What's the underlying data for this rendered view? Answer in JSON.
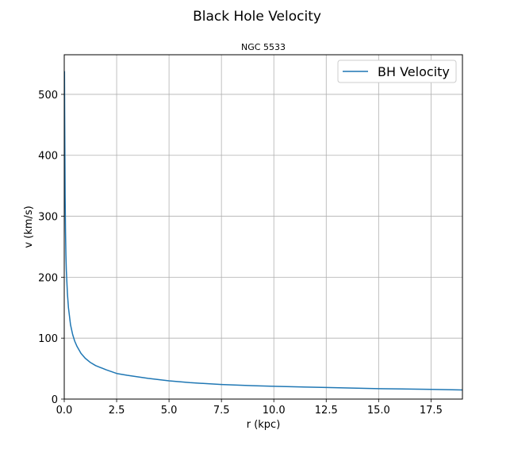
{
  "figure": {
    "suptitle": "Black Hole Velocity"
  },
  "chart_data": {
    "type": "line",
    "title": "NGC 5533",
    "xlabel": "r (kpc)",
    "ylabel": "v (km/s)",
    "xlim": [
      0,
      19
    ],
    "ylim": [
      0,
      565
    ],
    "xticks": [
      0,
      2.5,
      5,
      7.5,
      10,
      12.5,
      15,
      17.5
    ],
    "xtick_labels": [
      "0.0",
      "2.5",
      "5.0",
      "7.5",
      "10.0",
      "12.5",
      "15.0",
      "17.5"
    ],
    "yticks": [
      0,
      100,
      200,
      300,
      400,
      500
    ],
    "ytick_labels": [
      "0",
      "100",
      "200",
      "300",
      "400",
      "500"
    ],
    "grid": true,
    "legend_position": "top-right",
    "series": [
      {
        "name": "BH Velocity",
        "color": "#1f77b4",
        "x": [
          0.01,
          0.02,
          0.04,
          0.06,
          0.08,
          0.1,
          0.15,
          0.2,
          0.3,
          0.4,
          0.5,
          0.6,
          0.8,
          1.0,
          1.25,
          1.5,
          2.0,
          2.5,
          3.0,
          4.0,
          5.0,
          6.0,
          7.5,
          9.0,
          10.0,
          12.5,
          15.0,
          17.5,
          19.0
        ],
        "y": [
          538,
          474,
          335,
          274,
          237,
          212,
          173,
          150,
          122,
          106,
          95,
          87,
          75,
          67,
          60,
          55,
          48,
          42,
          39,
          34,
          30,
          27,
          24,
          22,
          21,
          19,
          17,
          16,
          15
        ]
      }
    ]
  }
}
